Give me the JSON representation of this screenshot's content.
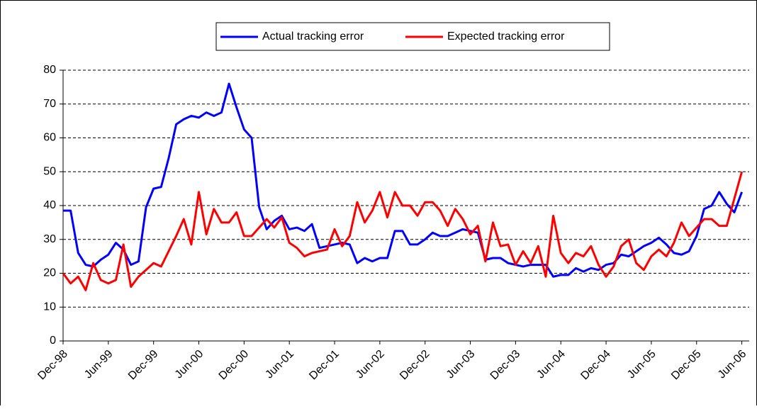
{
  "chart_data": {
    "type": "line",
    "categories": [
      "Dec-98",
      null,
      null,
      null,
      null,
      null,
      "Jun-99",
      null,
      null,
      null,
      null,
      null,
      "Dec-99",
      null,
      null,
      null,
      null,
      null,
      "Jun-00",
      null,
      null,
      null,
      null,
      null,
      "Dec-00",
      null,
      null,
      null,
      null,
      null,
      "Jun-01",
      null,
      null,
      null,
      null,
      null,
      "Dec-01",
      null,
      null,
      null,
      null,
      null,
      "Jun-02",
      null,
      null,
      null,
      null,
      null,
      "Dec-02",
      null,
      null,
      null,
      null,
      null,
      "Jun-03",
      null,
      null,
      null,
      null,
      null,
      "Dec-03",
      null,
      null,
      null,
      null,
      null,
      "Jun-04",
      null,
      null,
      null,
      null,
      null,
      "Dec-04",
      null,
      null,
      null,
      null,
      null,
      "Jun-05",
      null,
      null,
      null,
      null,
      null,
      "Dec-05",
      null,
      null,
      null,
      null,
      null,
      "Jun-06"
    ],
    "series": [
      {
        "name": "Actual tracking error",
        "color": "#0000ff",
        "values": [
          38.5,
          38.5,
          26,
          22.5,
          22,
          24,
          25.5,
          29,
          27,
          22.5,
          23.5,
          39.5,
          45,
          45.5,
          54,
          64,
          65.5,
          66.5,
          66,
          67.5,
          66.5,
          67.5,
          76,
          69,
          62.5,
          60,
          39.5,
          33,
          35.5,
          37,
          33,
          33.5,
          32.5,
          34.5,
          27.5,
          28,
          28.5,
          29,
          28.5,
          23,
          24.5,
          23.5,
          24.5,
          24.5,
          32.5,
          32.5,
          28.5,
          28.5,
          30,
          32,
          31,
          31,
          32,
          33,
          32.5,
          32,
          24,
          24.5,
          24.5,
          23,
          22.5,
          22,
          22.5,
          22.5,
          22.5,
          19,
          19.5,
          19.5,
          21.5,
          20.5,
          21.5,
          21,
          22.5,
          23,
          25.5,
          25,
          26.5,
          28,
          29,
          30.5,
          28.5,
          26,
          25.5,
          26.5,
          31,
          39,
          40,
          44,
          40.5,
          38,
          44
        ]
      },
      {
        "name": "Expected tracking error",
        "color": "#ff0000",
        "values": [
          20,
          17,
          19,
          15,
          23,
          18,
          17,
          18,
          28.5,
          16,
          19,
          21,
          23,
          22,
          26.5,
          31,
          36,
          28.5,
          44,
          31.5,
          39,
          35,
          35,
          38,
          31,
          31,
          33.5,
          36,
          33.5,
          36.5,
          29,
          27.5,
          25,
          26,
          26.5,
          27,
          33,
          28,
          31,
          41,
          35,
          38.5,
          44,
          36.5,
          44,
          40,
          40,
          37,
          41,
          41,
          38.5,
          34,
          39,
          36,
          31.5,
          34,
          23.5,
          35,
          28,
          28.5,
          22.5,
          26.5,
          23,
          28,
          19,
          37,
          26,
          23,
          26,
          25,
          28,
          22.5,
          19,
          22,
          28,
          30,
          23,
          21,
          25,
          27,
          25,
          29,
          35,
          31,
          33.5,
          36,
          36,
          34,
          34,
          42,
          50
        ]
      }
    ],
    "ylim": [
      0,
      80
    ],
    "yticks": [
      0,
      10,
      20,
      30,
      40,
      50,
      60,
      70,
      80
    ],
    "grid": true,
    "legend": "top"
  }
}
